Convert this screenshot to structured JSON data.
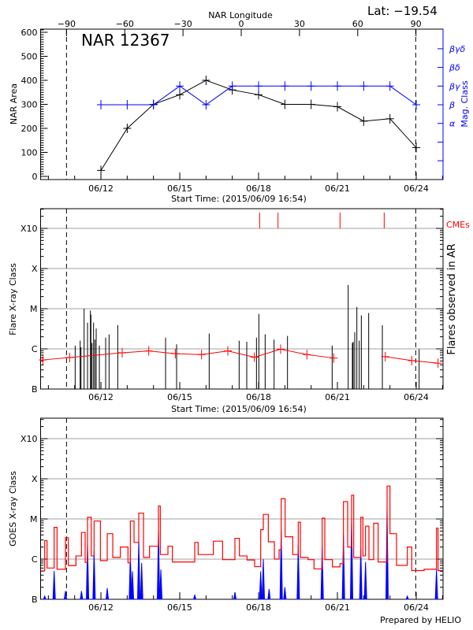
{
  "header": {
    "top_axis_label": "NAR Longitude",
    "latitude": "Lat: −19.54",
    "region": "NAR 12367",
    "prepared_by": "Prepared by HELIO"
  },
  "colors": {
    "area": "#000000",
    "mag": "#0000ff",
    "cme": "#ff0000",
    "avg": "#ff0000",
    "goes_long": "#ff0000",
    "goes_short": "#0000ff",
    "grid": "#a0a0a0"
  },
  "chart_data": [
    {
      "type": "line",
      "x_unit": "day of June 2015",
      "xlim": [
        9.704,
        25.02
      ],
      "xticks": [
        {
          "day": 12,
          "label": "06/12"
        },
        {
          "day": 15,
          "label": "06/15"
        },
        {
          "day": 18,
          "label": "06/18"
        },
        {
          "day": 21,
          "label": "06/21"
        },
        {
          "day": 24,
          "label": "06/24"
        }
      ],
      "xlabel": "Start Time: (2015/06/09 16:54)",
      "top_axis": {
        "label": "NAR Longitude",
        "ticks": [
          -90,
          -60,
          -30,
          0,
          30,
          60,
          90
        ],
        "lon_minus90_day": 10.69,
        "lon_plus90_day": 23.99
      },
      "limb_lines_days": [
        10.69,
        23.98
      ],
      "ylabel": "NAR Area",
      "ylim": [
        -13,
        613
      ],
      "yticks": [
        0,
        100,
        200,
        300,
        400,
        500,
        600
      ],
      "y2label": "Mag. Class",
      "y2_levels": [
        "α",
        "β",
        "βγ",
        "βδ",
        "βγδ"
      ],
      "series": [
        {
          "key": "area",
          "x": [
            12,
            13,
            14,
            15,
            16,
            17,
            18,
            19,
            20,
            21,
            22,
            23,
            24
          ],
          "y": [
            25,
            200,
            300,
            340,
            400,
            360,
            340,
            300,
            300,
            290,
            230,
            240,
            120
          ]
        },
        {
          "key": "mag_class",
          "x": [
            12,
            13,
            14,
            15,
            16,
            17,
            18,
            19,
            20,
            21,
            22,
            23,
            24
          ],
          "y": [
            "β",
            "β",
            "β",
            "βγ",
            "β",
            "βγ",
            "βγ",
            "βγ",
            "βγ",
            "βγ",
            "βγ",
            "βγ",
            "β"
          ]
        }
      ]
    },
    {
      "type": "bar",
      "xlabel": "Start Time: (2015/06/09 16:54)",
      "ylabel": "Flare X-ray Class",
      "y2label": "Flares observed in AR",
      "yscale": "log",
      "ylim_flux": [
        1e-07,
        0.0031
      ],
      "yticks": [
        {
          "label": "B",
          "flux": 1e-07
        },
        {
          "label": "C",
          "flux": 1e-06
        },
        {
          "label": "M",
          "flux": 1e-05
        },
        {
          "label": "X",
          "flux": 0.0001
        },
        {
          "label": "X10",
          "flux": 0.001
        }
      ],
      "grid": true,
      "cme_label": "CMEs",
      "cme_days": [
        18.04,
        18.74,
        21.1,
        22.78
      ],
      "flares": [
        [
          11.02,
          1.2e-06
        ],
        [
          11.21,
          1.6e-06
        ],
        [
          11.24,
          1.1e-06
        ],
        [
          11.36,
          1e-05
        ],
        [
          11.49,
          4.5e-06
        ],
        [
          11.6,
          9e-06
        ],
        [
          11.62,
          7.1e-06
        ],
        [
          11.66,
          1.4e-06
        ],
        [
          11.72,
          4.5e-06
        ],
        [
          11.77,
          1.7e-06
        ],
        [
          11.82,
          3.2e-06
        ],
        [
          11.94,
          1.2e-06
        ],
        [
          12.0,
          1.3e-07
        ],
        [
          12.18,
          1.9e-06
        ],
        [
          12.31,
          2.3e-06
        ],
        [
          12.64,
          3.9e-06
        ],
        [
          14.46,
          1.9e-06
        ],
        [
          14.88,
          1.3e-06
        ],
        [
          16.12,
          2.4e-06
        ],
        [
          17.26,
          1.6e-06
        ],
        [
          17.55,
          1.5e-06
        ],
        [
          17.92,
          1.9e-06
        ],
        [
          18.01,
          7.4e-06
        ],
        [
          18.25,
          2.3e-06
        ],
        [
          18.59,
          1.7e-06
        ],
        [
          19.1,
          2.1e-06
        ],
        [
          20.8,
          1.2e-06
        ],
        [
          21.41,
          3.9e-05
        ],
        [
          21.57,
          1.4e-06
        ],
        [
          21.6,
          1.5e-06
        ],
        [
          21.66,
          2.6e-06
        ],
        [
          21.74,
          1.1e-05
        ],
        [
          21.83,
          1.6e-06
        ],
        [
          21.91,
          6.8e-06
        ],
        [
          22.19,
          7.8e-06
        ],
        [
          22.71,
          3.9e-06
        ],
        [
          24.11,
          9.8e-07
        ]
      ],
      "daily_average": [
        [
          [
            9.79,
            5.3e-07
          ],
          [
            10.81,
            6.1e-07
          ],
          [
            12.81,
            8e-07
          ],
          [
            13.82,
            8.9e-07
          ],
          [
            14.83,
            7.6e-07
          ],
          [
            15.83,
            7.2e-07
          ],
          [
            16.83,
            8.9e-07
          ],
          [
            17.84,
            6.2e-07
          ],
          [
            18.84,
            9.8e-07
          ],
          [
            19.84,
            7.2e-07
          ],
          [
            20.86,
            5.9e-07
          ]
        ],
        [
          [
            22.82,
            6.4e-07
          ],
          [
            23.83,
            5.1e-07
          ],
          [
            24.83,
            4.4e-07
          ]
        ]
      ]
    },
    {
      "type": "line",
      "ylabel": "GOES X-ray Class",
      "yscale": "log",
      "ylim_flux": [
        1e-07,
        0.0031
      ],
      "yticks": [
        {
          "label": "B",
          "flux": 1e-07
        },
        {
          "label": "C",
          "flux": 1e-06
        },
        {
          "label": "M",
          "flux": 1e-05
        },
        {
          "label": "X",
          "flux": 0.0001
        },
        {
          "label": "X10",
          "flux": 0.001
        }
      ],
      "grid": true,
      "series": [
        {
          "key": "long_channel",
          "points": [
            [
              9.71,
              5.1e-07
            ],
            [
              9.86,
              2.9e-06
            ],
            [
              9.95,
              6e-07
            ],
            [
              10.22,
              6.2e-06
            ],
            [
              10.33,
              5.6e-07
            ],
            [
              10.65,
              3.4e-06
            ],
            [
              10.76,
              6.9e-07
            ],
            [
              11.05,
              1.2e-06
            ],
            [
              11.26,
              4.6e-06
            ],
            [
              11.4,
              8.3e-07
            ],
            [
              11.49,
              1.1e-05
            ],
            [
              11.63,
              1.2e-06
            ],
            [
              11.74,
              8.9e-06
            ],
            [
              11.98,
              9.2e-07
            ],
            [
              12.24,
              4.3e-06
            ],
            [
              12.45,
              1.1e-06
            ],
            [
              12.74,
              2e-06
            ],
            [
              13.03,
              8.1e-07
            ],
            [
              13.12,
              8.9e-06
            ],
            [
              13.26,
              2.6e-06
            ],
            [
              13.44,
              1.4e-05
            ],
            [
              13.62,
              1.1e-06
            ],
            [
              13.85,
              2.1e-06
            ],
            [
              14.19,
              2.1e-05
            ],
            [
              14.26,
              1.3e-06
            ],
            [
              14.55,
              2.1e-06
            ],
            [
              14.72,
              8.5e-07
            ],
            [
              15.24,
              8.5e-07
            ],
            [
              15.57,
              2.6e-06
            ],
            [
              15.7,
              1.3e-06
            ],
            [
              16.28,
              2.8e-06
            ],
            [
              16.63,
              9.7e-07
            ],
            [
              17.1,
              3.3e-06
            ],
            [
              17.27,
              1.2e-06
            ],
            [
              17.56,
              9.5e-07
            ],
            [
              17.85,
              6.5e-07
            ],
            [
              18.08,
              5.4e-06
            ],
            [
              18.18,
              1.3e-05
            ],
            [
              18.37,
              2.7e-06
            ],
            [
              18.6,
              1e-06
            ],
            [
              18.78,
              1.7e-06
            ],
            [
              18.86,
              3.2e-05
            ],
            [
              19.01,
              3.6e-06
            ],
            [
              19.3,
              1.3e-06
            ],
            [
              19.51,
              8.3e-06
            ],
            [
              19.59,
              1.1e-06
            ],
            [
              19.88,
              9.7e-07
            ],
            [
              20.11,
              5.7e-07
            ],
            [
              20.42,
              1.05e-05
            ],
            [
              20.52,
              9.7e-07
            ],
            [
              20.81,
              6.4e-07
            ],
            [
              21.1,
              7.7e-07
            ],
            [
              21.23,
              2.7e-05
            ],
            [
              21.39,
              2e-06
            ],
            [
              21.54,
              3.9e-05
            ],
            [
              21.62,
              1.1e-06
            ],
            [
              21.89,
              1.1e-05
            ],
            [
              21.97,
              1.2e-06
            ],
            [
              22.07,
              6.6e-06
            ],
            [
              22.2,
              9.7e-07
            ],
            [
              22.38,
              7.8e-06
            ],
            [
              22.55,
              8.5e-07
            ],
            [
              22.79,
              8.5e-07
            ],
            [
              22.89,
              6.6e-05
            ],
            [
              23.0,
              4.3e-06
            ],
            [
              23.25,
              7e-07
            ],
            [
              23.66,
              2e-06
            ],
            [
              23.83,
              5.2e-07
            ],
            [
              24.3,
              5.6e-07
            ],
            [
              24.77,
              5.9e-06
            ],
            [
              24.83,
              5.2e-07
            ],
            [
              25.0,
              5.2e-07
            ]
          ]
        },
        {
          "key": "short_channel",
          "spikes": [
            [
              9.86,
              1.2e-07
            ],
            [
              10.22,
              5.1e-07
            ],
            [
              10.65,
              1.6e-07
            ],
            [
              11.26,
              1.6e-07
            ],
            [
              11.49,
              2.5e-06
            ],
            [
              11.74,
              1.6e-06
            ],
            [
              12.24,
              1.9e-07
            ],
            [
              13.12,
              1.4e-06
            ],
            [
              13.2,
              5e-07
            ],
            [
              13.44,
              3e-06
            ],
            [
              13.55,
              8e-07
            ],
            [
              14.19,
              5.4e-06
            ],
            [
              14.28,
              5.5e-07
            ],
            [
              15.57,
              1.3e-07
            ],
            [
              17.1,
              1.5e-07
            ],
            [
              18.08,
              5e-07
            ],
            [
              18.18,
              1e-06
            ],
            [
              18.4,
              1.8e-07
            ],
            [
              18.86,
              5.1e-06
            ],
            [
              19.0,
              2e-07
            ],
            [
              19.51,
              2.2e-06
            ],
            [
              20.42,
              2.1e-06
            ],
            [
              21.23,
              4.1e-06
            ],
            [
              21.54,
              1.05e-05
            ],
            [
              21.89,
              1.9e-06
            ],
            [
              22.07,
              8.5e-07
            ],
            [
              22.89,
              1.8e-05
            ],
            [
              23.66,
              1.2e-07
            ],
            [
              24.77,
              5.6e-07
            ]
          ]
        }
      ]
    }
  ]
}
